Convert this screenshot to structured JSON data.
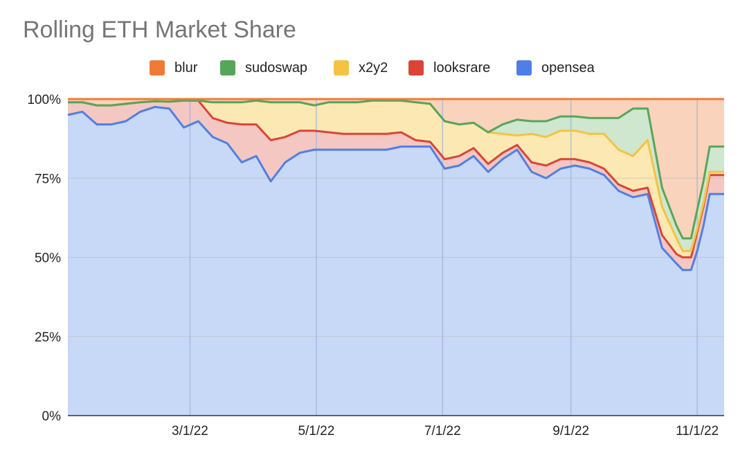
{
  "chart_data": {
    "type": "area",
    "stacked": true,
    "title": "Rolling ETH Market Share",
    "xlabel": "",
    "ylabel": "",
    "ylim": [
      0,
      100
    ],
    "y_ticks": [
      "0%",
      "25%",
      "50%",
      "75%",
      "100%"
    ],
    "y_tick_values": [
      0,
      25,
      50,
      75,
      100
    ],
    "x_ticks": [
      "3/1/22",
      "5/1/22",
      "7/1/22",
      "9/1/22",
      "11/1/22"
    ],
    "x_tick_values": [
      "2022-03-01",
      "2022-05-01",
      "2022-07-01",
      "2022-09-01",
      "2022-11-01"
    ],
    "xlim": [
      "2022-01-01",
      "2022-11-14"
    ],
    "grid": true,
    "legend_position": "top",
    "x": [
      "2022-01-01",
      "2022-01-08",
      "2022-01-15",
      "2022-01-22",
      "2022-01-29",
      "2022-02-05",
      "2022-02-12",
      "2022-02-19",
      "2022-02-26",
      "2022-03-05",
      "2022-03-12",
      "2022-03-19",
      "2022-03-26",
      "2022-04-02",
      "2022-04-09",
      "2022-04-16",
      "2022-04-23",
      "2022-04-30",
      "2022-05-07",
      "2022-05-14",
      "2022-05-21",
      "2022-05-28",
      "2022-06-04",
      "2022-06-11",
      "2022-06-18",
      "2022-06-25",
      "2022-07-02",
      "2022-07-09",
      "2022-07-16",
      "2022-07-23",
      "2022-07-30",
      "2022-08-06",
      "2022-08-13",
      "2022-08-20",
      "2022-08-27",
      "2022-09-03",
      "2022-09-10",
      "2022-09-17",
      "2022-09-24",
      "2022-10-01",
      "2022-10-08",
      "2022-10-15",
      "2022-10-22",
      "2022-10-25",
      "2022-10-29",
      "2022-11-01",
      "2022-11-04",
      "2022-11-07",
      "2022-11-10",
      "2022-11-14"
    ],
    "series": [
      {
        "name": "opensea",
        "color": "#4f7fe6",
        "fill": "#c8d8f7",
        "values": [
          95,
          96,
          92,
          92,
          93,
          96,
          97.5,
          97,
          91,
          93,
          88,
          86,
          80,
          82,
          74,
          80,
          83,
          84,
          84,
          84,
          84,
          84,
          84,
          85,
          85,
          85,
          78,
          79,
          82,
          77,
          81,
          84,
          77,
          75,
          78,
          79,
          78,
          76,
          71,
          69,
          70,
          53,
          48,
          46,
          46,
          52,
          60,
          70,
          70,
          70
        ]
      },
      {
        "name": "looksrare",
        "color": "#db4437",
        "fill": "#f4c7c3",
        "values": [
          4,
          3,
          6,
          6,
          5.5,
          3,
          1.8,
          2.2,
          8.5,
          6.5,
          6,
          6.5,
          12,
          10,
          13,
          8,
          7,
          6,
          5.5,
          5,
          5,
          5,
          5,
          4.5,
          2,
          1.5,
          3,
          3,
          2.5,
          2.5,
          2,
          1.5,
          3,
          4,
          3,
          2,
          2,
          2,
          2,
          2,
          2,
          4,
          3,
          4,
          4,
          6,
          6,
          6,
          6,
          6
        ]
      },
      {
        "name": "x2y2",
        "color": "#f4c343",
        "fill": "#fce8b2",
        "values": [
          0,
          0,
          0,
          0,
          0,
          0,
          0,
          0,
          0,
          0,
          5,
          6.5,
          7,
          7.5,
          12,
          11,
          9,
          8,
          9.5,
          10,
          10,
          10.5,
          10.5,
          10,
          12,
          12,
          12,
          10,
          8,
          10,
          6,
          3,
          9,
          9,
          9,
          9,
          9,
          11,
          11,
          11,
          15,
          9,
          5,
          2,
          2,
          1,
          1,
          1,
          1,
          1
        ]
      },
      {
        "name": "sudoswap",
        "color": "#57a55a",
        "fill": "#cfe6cf",
        "values": [
          0,
          0,
          0,
          0,
          0,
          0,
          0,
          0,
          0,
          0,
          0,
          0,
          0,
          0,
          0,
          0,
          0,
          0,
          0,
          0,
          0,
          0,
          0,
          0,
          0,
          0,
          0,
          0,
          0,
          0,
          3,
          5,
          4,
          5,
          4.5,
          4.5,
          5,
          5,
          10,
          15,
          10,
          6,
          4,
          4,
          4,
          6,
          7,
          8,
          8,
          8
        ]
      },
      {
        "name": "blur",
        "color": "#f07b36",
        "fill": "#f9d3bc",
        "values": [
          1,
          1,
          2,
          2,
          1.5,
          1,
          0.7,
          0.8,
          0.5,
          0.5,
          1,
          1,
          1,
          0.5,
          1,
          1,
          1,
          2,
          1,
          1,
          1,
          0.5,
          0.5,
          0.5,
          1,
          1.5,
          7,
          8,
          7.5,
          10.5,
          8,
          6.5,
          7,
          7,
          5.5,
          5.5,
          6,
          6,
          6,
          3,
          3,
          28,
          40,
          44,
          44,
          35,
          26,
          15,
          15,
          15
        ]
      }
    ]
  }
}
